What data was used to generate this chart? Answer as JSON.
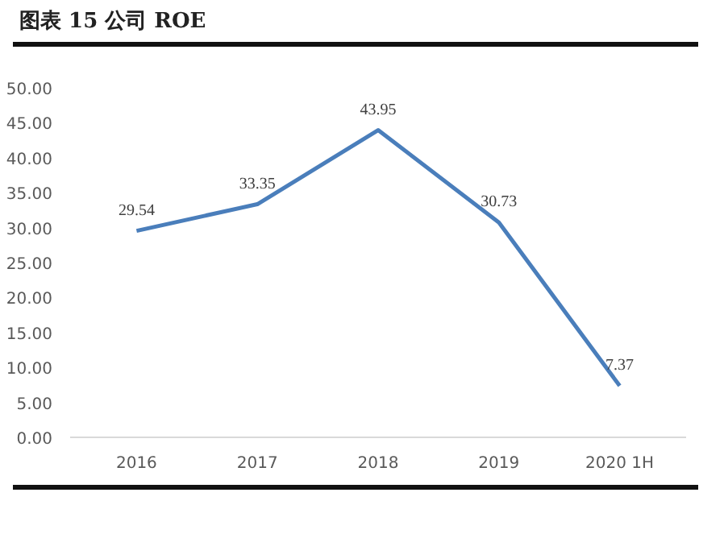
{
  "chart_data": {
    "type": "line",
    "title": "图表 15 公司 ROE",
    "categories": [
      "2016",
      "2017",
      "2018",
      "2019",
      "2020 1H"
    ],
    "series": [
      {
        "color": "#4a7ebb",
        "values": [
          29.54,
          33.35,
          43.95,
          30.73,
          7.37
        ]
      }
    ],
    "ylim": [
      0,
      50
    ],
    "yticks": [
      {
        "value": 0,
        "label": "0.00"
      },
      {
        "value": 5,
        "label": "5.00"
      },
      {
        "value": 10,
        "label": "10.00"
      },
      {
        "value": 15,
        "label": "15.00"
      },
      {
        "value": 20,
        "label": "20.00"
      },
      {
        "value": 25,
        "label": "25.00"
      },
      {
        "value": 30,
        "label": "30.00"
      },
      {
        "value": 35,
        "label": "35.00"
      },
      {
        "value": 40,
        "label": "40.00"
      },
      {
        "value": 45,
        "label": "45.00"
      },
      {
        "value": 50,
        "label": "50.00"
      }
    ],
    "data_labels": true,
    "grid": false,
    "marker": "none",
    "line_style": "solid"
  }
}
